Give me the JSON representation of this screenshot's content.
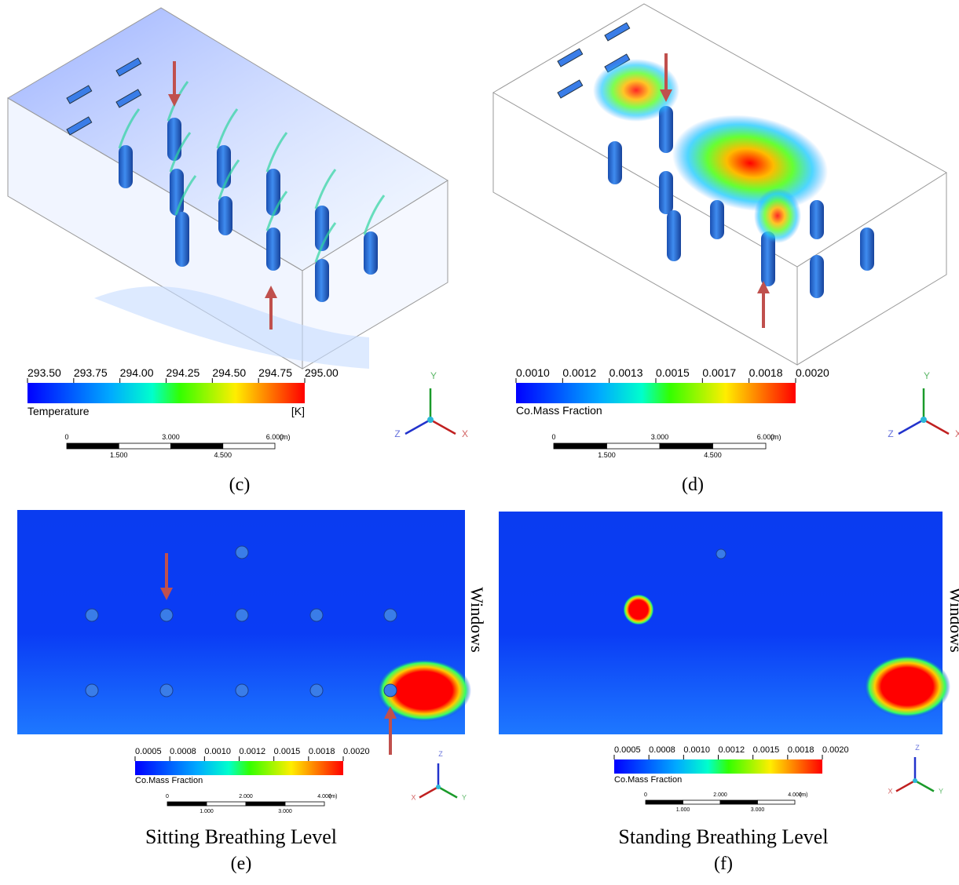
{
  "panels": [
    {
      "caption": "(c)",
      "colorbar": {
        "ticks": [
          "293.50",
          "293.75",
          "294.00",
          "294.25",
          "294.50",
          "294.75",
          "295.00"
        ],
        "label": "Temperature",
        "unit": "[K]"
      },
      "scale": {
        "top": [
          "0",
          "3.000",
          "6.000"
        ],
        "unit": "(m)",
        "bottom": [
          "1.500",
          "4.500"
        ]
      },
      "axes": [
        "Y",
        "Z",
        "X"
      ]
    },
    {
      "caption": "(d)",
      "colorbar": {
        "ticks": [
          "0.0010",
          "0.0012",
          "0.0013",
          "0.0015",
          "0.0017",
          "0.0018",
          "0.0020"
        ],
        "label": "Co.Mass Fraction"
      },
      "scale": {
        "top": [
          "0",
          "3.000",
          "6.000"
        ],
        "unit": "(m)",
        "bottom": [
          "1.500",
          "4.500"
        ]
      },
      "axes": [
        "Y",
        "Z",
        "X"
      ]
    },
    {
      "caption": "(e)",
      "title": "Sitting Breathing Level",
      "side_label": "Windows",
      "colorbar": {
        "ticks": [
          "0.0005",
          "0.0008",
          "0.0010",
          "0.0012",
          "0.0015",
          "0.0018",
          "0.0020"
        ],
        "label": "Co.Mass Fraction"
      },
      "scale": {
        "top": [
          "0",
          "2.000",
          "4.000"
        ],
        "unit": "(m)",
        "bottom": [
          "1.000",
          "3.000"
        ]
      },
      "axes": [
        "Z",
        "X",
        "Y"
      ]
    },
    {
      "caption": "(f)",
      "title": "Standing Breathing Level",
      "side_label": "Windows",
      "colorbar": {
        "ticks": [
          "0.0005",
          "0.0008",
          "0.0010",
          "0.0012",
          "0.0015",
          "0.0018",
          "0.0020"
        ],
        "label": "Co.Mass Fraction"
      },
      "scale": {
        "top": [
          "0",
          "2.000",
          "4.000"
        ],
        "unit": "(m)",
        "bottom": [
          "1.000",
          "3.000"
        ]
      },
      "axes": [
        "Z",
        "X",
        "Y"
      ]
    }
  ]
}
